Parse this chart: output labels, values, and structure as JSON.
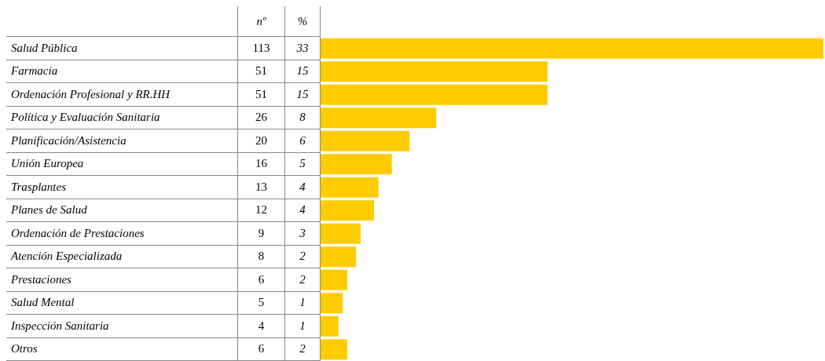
{
  "chart_data": {
    "type": "bar",
    "orientation": "horizontal",
    "categories": [
      "Salud Pública",
      "Farmacia",
      "Ordenación Profesional y RR.HH",
      "Política y Evaluación Sanitaria",
      "Planificación/Asistencia",
      "Unión Europea",
      "Trasplantes",
      "Planes de Salud",
      "Ordenación de Prestaciones",
      "Atención Especializada",
      "Prestaciones",
      "Salud Mental",
      "Inspección Sanitaria",
      "Otros"
    ],
    "values": [
      113,
      51,
      51,
      26,
      20,
      16,
      13,
      12,
      9,
      8,
      6,
      5,
      4,
      6
    ],
    "data_labels": true,
    "color": "#ffcc00",
    "annotations": [
      "nº",
      "%",
      "33",
      "15",
      "15",
      "8",
      "6",
      "5",
      "4",
      "4",
      "3",
      "2",
      "2",
      "1",
      "1",
      "2"
    ],
    "tick_labels": "y",
    "legend": false
  }
}
